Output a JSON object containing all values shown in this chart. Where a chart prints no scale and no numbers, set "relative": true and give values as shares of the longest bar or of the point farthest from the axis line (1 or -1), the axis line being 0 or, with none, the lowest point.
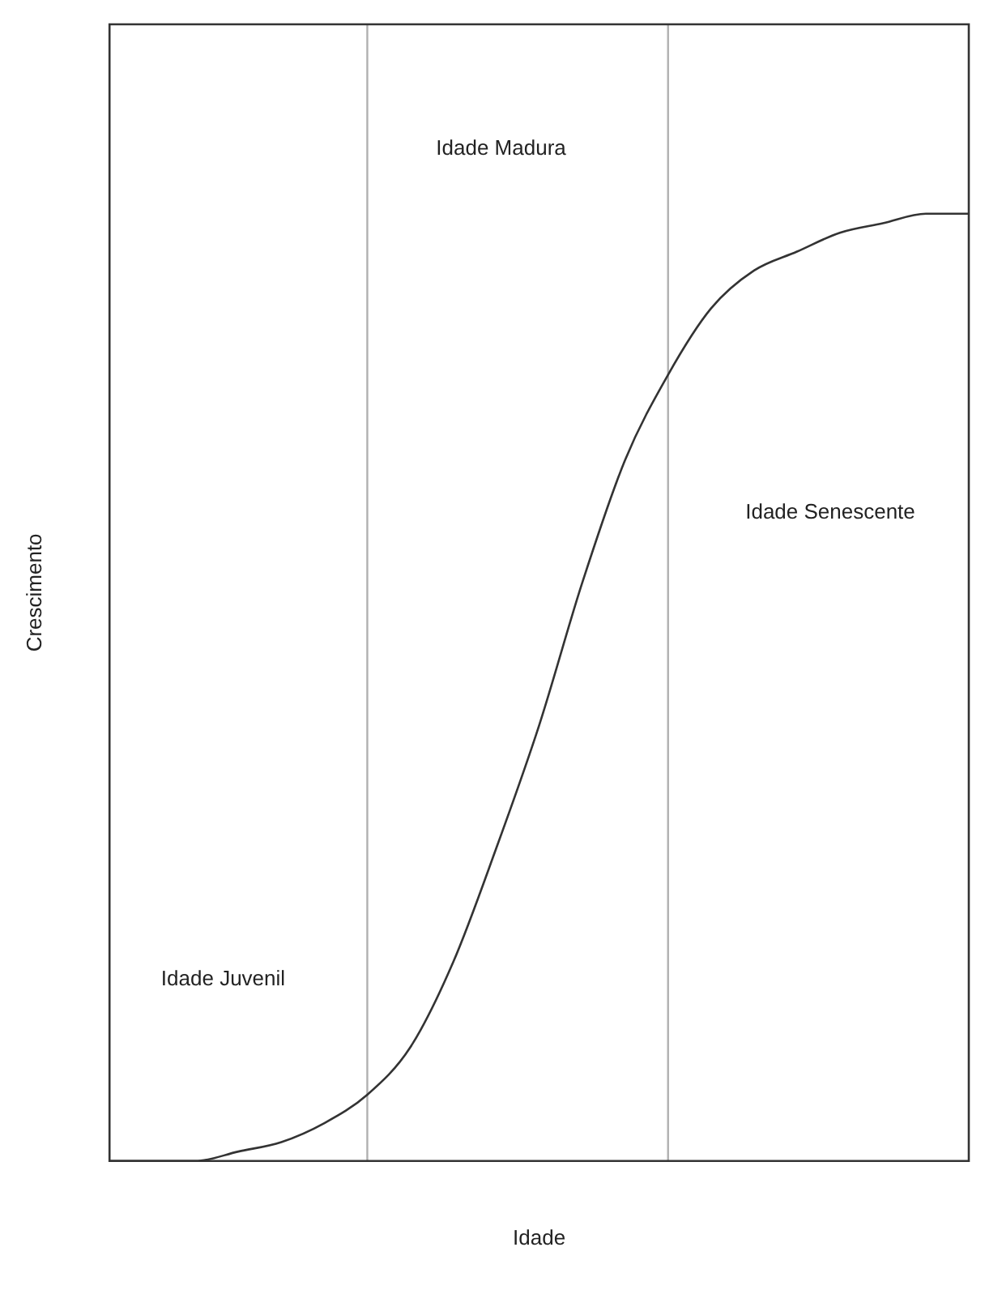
{
  "chart_data": {
    "type": "line",
    "relative": true,
    "xlabel": "Idade",
    "ylabel": "Crescimento",
    "categories": [
      null,
      null,
      null,
      null,
      null,
      null,
      null,
      null,
      null,
      null,
      null,
      null,
      null,
      null,
      null,
      null,
      null,
      null,
      null,
      null,
      null
    ],
    "series": [
      {
        "color": "#333333",
        "values": [
          0,
          0,
          0,
          0.01,
          0.02,
          0.04,
          0.07,
          0.12,
          0.21,
          0.33,
          0.46,
          0.61,
          0.74,
          0.83,
          0.9,
          0.94,
          0.96,
          0.98,
          0.99,
          1,
          1
        ]
      }
    ],
    "annotations": [
      "Idade Madura",
      "Idade Senescente",
      "Idade Juvenil"
    ],
    "marker": "none",
    "line_style": "solid",
    "grid": false,
    "legend": false,
    "tick_labels": false
  }
}
